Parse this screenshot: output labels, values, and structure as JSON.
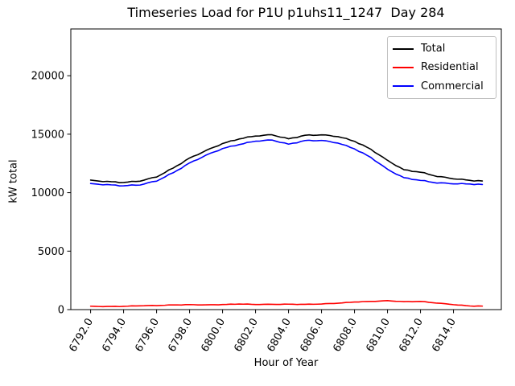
{
  "chart_data": {
    "type": "line",
    "title": "Timeseries Load for P1U p1uhs11_1247  Day 284",
    "xlabel": "Hour of Year",
    "ylabel": "kW total",
    "xlim": [
      6790.8,
      6816.9
    ],
    "ylim": [
      0,
      24000
    ],
    "xticks": [
      6792,
      6794,
      6796,
      6798,
      6800,
      6802,
      6804,
      6806,
      6808,
      6810,
      6812,
      6814
    ],
    "xtick_labels": [
      "6792.0",
      "6794.0",
      "6796.0",
      "6798.0",
      "6800.0",
      "6802.0",
      "6804.0",
      "6806.0",
      "6808.0",
      "6810.0",
      "6812.0",
      "6814.0"
    ],
    "yticks": [
      0,
      5000,
      10000,
      15000,
      20000
    ],
    "ytick_labels": [
      "0",
      "5000",
      "10000",
      "15000",
      "20000"
    ],
    "grid": false,
    "legend_position": "upper-right",
    "x": [
      6792,
      6793,
      6794,
      6795,
      6796,
      6797,
      6798,
      6799,
      6800,
      6801,
      6802,
      6803,
      6804,
      6805,
      6806,
      6807,
      6808,
      6809,
      6810,
      6811,
      6812,
      6813,
      6814,
      6815,
      6815.75
    ],
    "series": [
      {
        "name": "Total",
        "color": "#000000",
        "values": [
          11050,
          10950,
          10870,
          11000,
          11350,
          12100,
          12950,
          13600,
          14200,
          14600,
          14850,
          14950,
          14600,
          14900,
          14950,
          14800,
          14400,
          13700,
          12750,
          11950,
          11750,
          11400,
          11200,
          11050,
          11000
        ]
      },
      {
        "name": "Residential",
        "color": "#ff0000",
        "values": [
          280,
          260,
          280,
          330,
          350,
          400,
          420,
          400,
          430,
          480,
          440,
          450,
          460,
          450,
          480,
          550,
          650,
          700,
          760,
          680,
          700,
          560,
          430,
          310,
          300
        ]
      },
      {
        "name": "Commercial",
        "color": "#0000ff",
        "values": [
          10760,
          10680,
          10590,
          10670,
          11000,
          11700,
          12530,
          13200,
          13770,
          14120,
          14410,
          14500,
          14140,
          14450,
          14470,
          14250,
          13750,
          13000,
          11990,
          11270,
          11050,
          10840,
          10770,
          10740,
          10700
        ]
      }
    ]
  }
}
